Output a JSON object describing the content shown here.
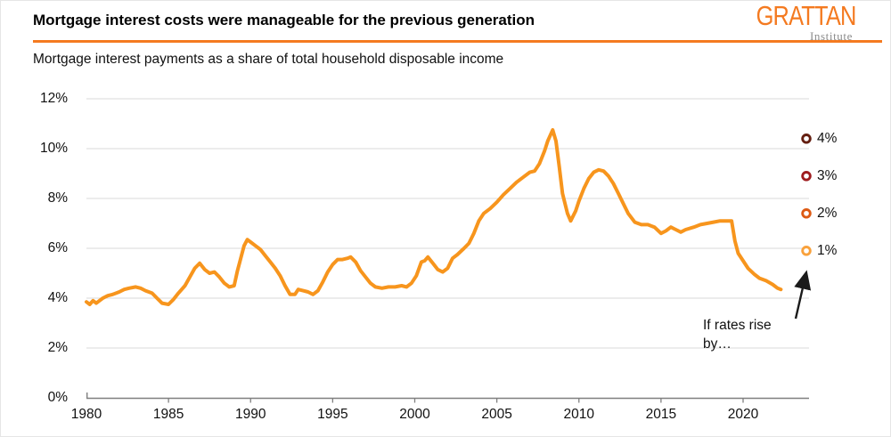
{
  "header": {
    "title": "Mortgage interest costs were manageable for the previous generation",
    "logo_text": "GRATTAN",
    "logo_subtext": "Institute"
  },
  "subtitle": "Mortgage interest payments as a share of total household disposable income",
  "colors": {
    "accent_orange": "#F47A20",
    "line_orange": "#F7951D",
    "gridline_gray": "#D9D9D9",
    "axis_gray": "#7F7F7F",
    "annotation_black": "#1A1A1A",
    "logo_subtext_gray": "#8C8C8C"
  },
  "chart_data": {
    "type": "line",
    "title": "Mortgage interest costs were manageable for the previous generation",
    "subtitle": "Mortgage interest payments as a share of total household disposable income",
    "ylim": [
      0,
      12
    ],
    "xlim": [
      1980,
      2024
    ],
    "grid": "horizontal",
    "legend": "none",
    "y_ticks": [
      {
        "value": 0,
        "label": "0%"
      },
      {
        "value": 2,
        "label": "2%"
      },
      {
        "value": 4,
        "label": "4%"
      },
      {
        "value": 6,
        "label": "6%"
      },
      {
        "value": 8,
        "label": "8%"
      },
      {
        "value": 10,
        "label": "10%"
      },
      {
        "value": 12,
        "label": "12%"
      }
    ],
    "x_ticks": [
      {
        "value": 1980,
        "label": "1980"
      },
      {
        "value": 1985,
        "label": "1985"
      },
      {
        "value": 1990,
        "label": "1990"
      },
      {
        "value": 1995,
        "label": "1995"
      },
      {
        "value": 2000,
        "label": "2000"
      },
      {
        "value": 2005,
        "label": "2005"
      },
      {
        "value": 2010,
        "label": "2010"
      },
      {
        "value": 2015,
        "label": "2015"
      },
      {
        "value": 2020,
        "label": "2020"
      }
    ],
    "series": [
      {
        "name": "Mortgage interest payments as a share of total household disposable income",
        "color": "#F7951D",
        "x": [
          1980,
          1980.2,
          1980.4,
          1980.6,
          1980.8,
          1981,
          1981.3,
          1981.6,
          1982,
          1982.3,
          1982.6,
          1983,
          1983.3,
          1983.6,
          1984,
          1984.3,
          1984.6,
          1985,
          1985.3,
          1985.6,
          1986,
          1986.3,
          1986.6,
          1986.9,
          1987.2,
          1987.5,
          1987.8,
          1988.1,
          1988.4,
          1988.7,
          1989,
          1989.2,
          1989.4,
          1989.6,
          1989.8,
          1990,
          1990.3,
          1990.6,
          1990.9,
          1991.2,
          1991.5,
          1991.8,
          1992.1,
          1992.4,
          1992.7,
          1992.9,
          1993.2,
          1993.5,
          1993.8,
          1994.1,
          1994.4,
          1994.7,
          1995,
          1995.3,
          1995.6,
          1995.9,
          1996.1,
          1996.4,
          1996.7,
          1997,
          1997.3,
          1997.6,
          1998,
          1998.4,
          1998.8,
          1999.2,
          1999.5,
          1999.8,
          2000.1,
          2000.4,
          2000.6,
          2000.8,
          2001.1,
          2001.4,
          2001.7,
          2002,
          2002.3,
          2002.6,
          2003,
          2003.3,
          2003.6,
          2003.9,
          2004.2,
          2004.6,
          2005,
          2005.4,
          2005.8,
          2006.2,
          2006.6,
          2007,
          2007.3,
          2007.6,
          2007.9,
          2008.1,
          2008.4,
          2008.6,
          2008.8,
          2009,
          2009.3,
          2009.5,
          2009.8,
          2010,
          2010.3,
          2010.6,
          2010.9,
          2011.2,
          2011.5,
          2011.8,
          2012.1,
          2012.4,
          2012.7,
          2013,
          2013.4,
          2013.8,
          2014.2,
          2014.6,
          2015,
          2015.3,
          2015.6,
          2015.9,
          2016.2,
          2016.5,
          2017,
          2017.4,
          2017.8,
          2018.2,
          2018.6,
          2019,
          2019.3,
          2019.5,
          2019.7,
          2020,
          2020.3,
          2020.7,
          2021,
          2021.4,
          2021.8,
          2022.1,
          2022.3
        ],
        "y": [
          3.85,
          3.75,
          3.9,
          3.8,
          3.9,
          4,
          4.1,
          4.15,
          4.25,
          4.35,
          4.4,
          4.45,
          4.4,
          4.3,
          4.2,
          4,
          3.8,
          3.75,
          3.95,
          4.2,
          4.5,
          4.85,
          5.2,
          5.4,
          5.15,
          5,
          5.05,
          4.85,
          4.6,
          4.45,
          4.5,
          5.1,
          5.6,
          6.1,
          6.35,
          6.25,
          6.1,
          5.95,
          5.7,
          5.45,
          5.2,
          4.9,
          4.5,
          4.15,
          4.15,
          4.35,
          4.3,
          4.25,
          4.15,
          4.3,
          4.65,
          5.05,
          5.35,
          5.55,
          5.55,
          5.6,
          5.65,
          5.45,
          5.1,
          4.85,
          4.6,
          4.45,
          4.4,
          4.45,
          4.45,
          4.5,
          4.45,
          4.6,
          4.9,
          5.45,
          5.5,
          5.65,
          5.4,
          5.15,
          5.05,
          5.2,
          5.6,
          5.75,
          6,
          6.2,
          6.6,
          7.1,
          7.4,
          7.6,
          7.85,
          8.15,
          8.4,
          8.65,
          8.85,
          9.05,
          9.1,
          9.4,
          9.9,
          10.3,
          10.75,
          10.3,
          9.3,
          8.2,
          7.4,
          7.1,
          7.5,
          7.9,
          8.4,
          8.8,
          9.05,
          9.15,
          9.1,
          8.9,
          8.6,
          8.2,
          7.8,
          7.4,
          7.05,
          6.95,
          6.95,
          6.85,
          6.6,
          6.7,
          6.85,
          6.75,
          6.65,
          6.75,
          6.85,
          6.95,
          7,
          7.05,
          7.1,
          7.1,
          7.1,
          6.3,
          5.8,
          5.5,
          5.2,
          4.95,
          4.8,
          4.7,
          4.55,
          4.4,
          4.35
        ]
      }
    ],
    "scenario_markers": [
      {
        "label": "4%",
        "value": 10.4,
        "color": "#641E10"
      },
      {
        "label": "3%",
        "value": 8.9,
        "color": "#9E1B1E"
      },
      {
        "label": "2%",
        "value": 7.4,
        "color": "#DD5A13"
      },
      {
        "label": "1%",
        "value": 5.9,
        "color": "#F9A13B"
      }
    ],
    "annotation": {
      "line1": "If rates rise",
      "line2": "by…"
    }
  }
}
